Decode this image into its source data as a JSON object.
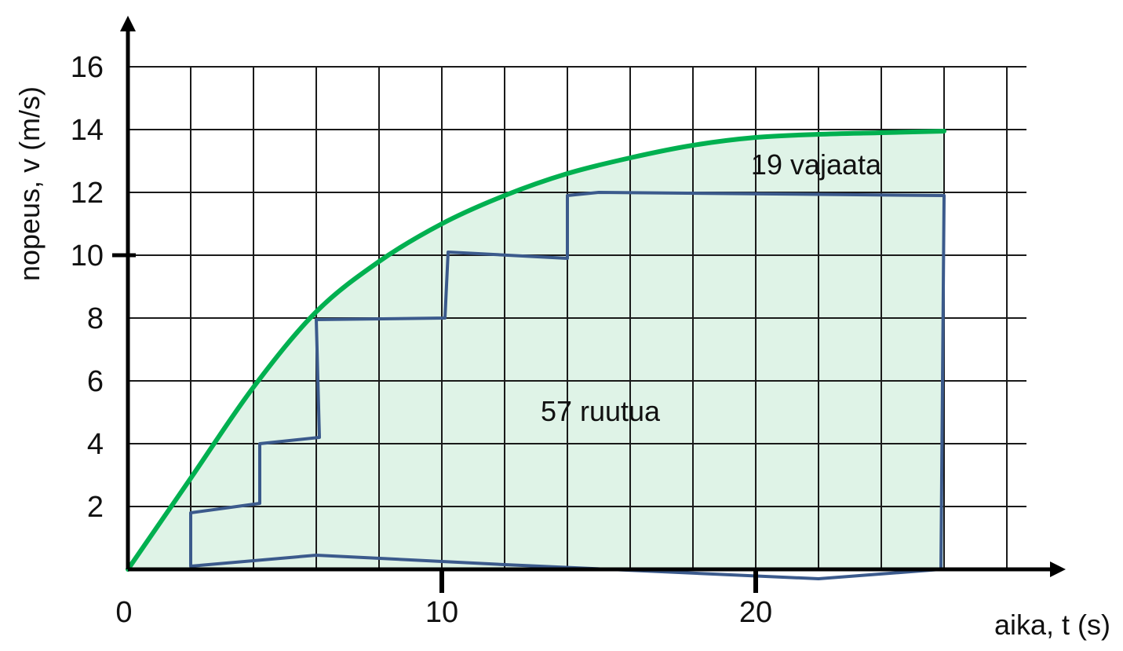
{
  "chart_data": {
    "type": "area",
    "xlabel": "aika, t (s)",
    "ylabel": "nopeus, v (m/s)",
    "xlim": [
      0,
      28
    ],
    "ylim": [
      0,
      16
    ],
    "x_ticks": [
      0,
      10,
      20
    ],
    "y_ticks": [
      2,
      4,
      6,
      8,
      10,
      12,
      14,
      16
    ],
    "grid": true,
    "colors": {
      "curve": "#00b050",
      "fill": "#dff3e7",
      "grid": "#1a1a1a",
      "outline": "#3b5a8c"
    },
    "series": [
      {
        "x": [
          0,
          2,
          4,
          6,
          8,
          10,
          12,
          14,
          16,
          18,
          20,
          22,
          24,
          26
        ],
        "values": [
          0,
          2.9,
          5.8,
          8.2,
          9.8,
          11.0,
          11.9,
          12.6,
          13.1,
          13.5,
          13.75,
          13.85,
          13.9,
          13.95
        ]
      }
    ],
    "annotations": [
      {
        "text": "19 vajaata",
        "x": 21.2,
        "y": 12.7
      },
      {
        "text": "57 ruutua",
        "x": 15.0,
        "y": 4.8
      }
    ],
    "staircase_outline": [
      [
        2.0,
        0.1
      ],
      [
        2.0,
        1.8
      ],
      [
        4.2,
        2.1
      ],
      [
        4.2,
        4.0
      ],
      [
        6.1,
        4.2
      ],
      [
        6.0,
        7.95
      ],
      [
        10.1,
        8.0
      ],
      [
        10.2,
        10.1
      ],
      [
        14.0,
        9.9
      ],
      [
        14.0,
        11.9
      ],
      [
        15.0,
        12.0
      ],
      [
        26.0,
        11.9
      ],
      [
        25.9,
        0.0
      ],
      [
        22.0,
        -0.3
      ],
      [
        12.0,
        0.15
      ],
      [
        6.0,
        0.45
      ],
      [
        2.0,
        0.1
      ]
    ]
  }
}
